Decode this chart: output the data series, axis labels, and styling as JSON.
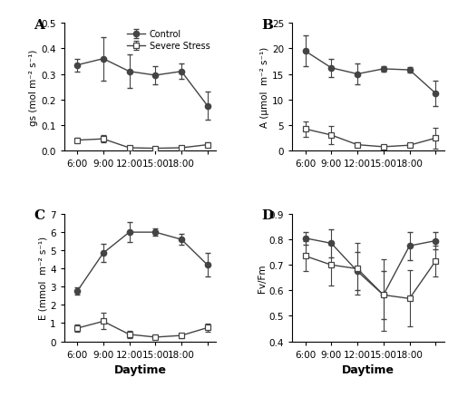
{
  "panel_A": {
    "label": "A",
    "ylabel": "gs (mol m⁻² s⁻¹)",
    "ylim": [
      0,
      0.5
    ],
    "yticks": [
      0.0,
      0.1,
      0.2,
      0.3,
      0.4,
      0.5
    ],
    "control_y": [
      0.335,
      0.36,
      0.31,
      0.295,
      0.31,
      0.175
    ],
    "control_err": [
      0.025,
      0.085,
      0.065,
      0.035,
      0.03,
      0.055
    ],
    "stress_y": [
      0.04,
      0.045,
      0.01,
      0.008,
      0.01,
      0.022
    ],
    "stress_err": [
      0.01,
      0.015,
      0.008,
      0.005,
      0.008,
      0.01
    ]
  },
  "panel_B": {
    "label": "B",
    "ylabel": "A (μmol  m⁻² s⁻¹)",
    "ylim": [
      0,
      25
    ],
    "yticks": [
      0,
      5,
      10,
      15,
      20,
      25
    ],
    "control_y": [
      19.5,
      16.2,
      15.0,
      16.0,
      15.8,
      11.2
    ],
    "control_err": [
      3.0,
      1.8,
      2.0,
      0.6,
      0.5,
      2.5
    ],
    "stress_y": [
      4.2,
      3.0,
      1.1,
      0.7,
      1.0,
      2.4
    ],
    "stress_err": [
      1.5,
      1.8,
      0.5,
      0.4,
      0.3,
      2.0
    ]
  },
  "panel_C": {
    "label": "C",
    "ylabel": "E (mmol  m⁻² s⁻¹)",
    "ylim": [
      0,
      7.0
    ],
    "yticks": [
      0.0,
      1.0,
      2.0,
      3.0,
      4.0,
      5.0,
      6.0,
      7.0
    ],
    "control_y": [
      2.75,
      4.85,
      6.0,
      6.0,
      5.6,
      4.2
    ],
    "control_err": [
      0.2,
      0.5,
      0.55,
      0.2,
      0.3,
      0.65
    ],
    "stress_y": [
      0.72,
      1.1,
      0.38,
      0.23,
      0.32,
      0.75
    ],
    "stress_err": [
      0.18,
      0.45,
      0.18,
      0.1,
      0.12,
      0.2
    ]
  },
  "panel_D": {
    "label": "D",
    "ylabel": "Fv/Fm",
    "ylim": [
      0.4,
      0.9
    ],
    "yticks": [
      0.4,
      0.5,
      0.6,
      0.7,
      0.8,
      0.9
    ],
    "control_y": [
      0.805,
      0.785,
      0.675,
      0.582,
      0.775,
      0.795
    ],
    "control_err": [
      0.025,
      0.055,
      0.075,
      0.095,
      0.055,
      0.035
    ],
    "stress_y": [
      0.735,
      0.7,
      0.685,
      0.582,
      0.568,
      0.715
    ],
    "stress_err": [
      0.06,
      0.08,
      0.1,
      0.14,
      0.11,
      0.06
    ]
  },
  "legend_labels": [
    "Control",
    "Severe Stress"
  ],
  "xlabel": "Daytime",
  "x_values": [
    6,
    9,
    12,
    15,
    18,
    21
  ],
  "x_ticks": [
    6,
    9,
    12,
    15,
    18,
    21
  ],
  "x_tick_labels": [
    "6:00",
    "9:00",
    "12:00",
    "15:00",
    "18:00",
    ""
  ],
  "xlim": [
    4.5,
    22
  ],
  "line_color": "#444444",
  "markersize": 4.5,
  "fontsize_tick": 7.5,
  "fontsize_ylabel": 7.5,
  "fontsize_xlabel": 9,
  "fontsize_label": 11
}
